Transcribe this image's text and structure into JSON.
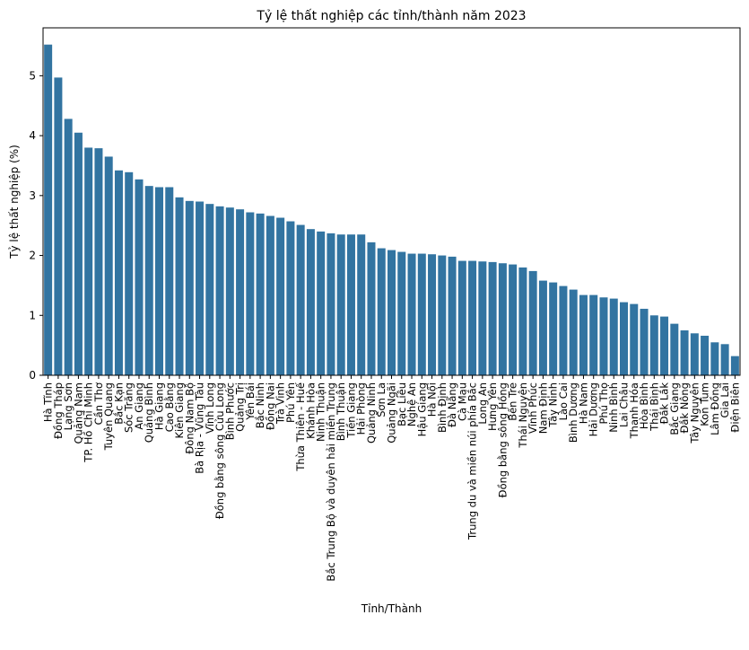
{
  "chart_data": {
    "type": "bar",
    "title": "Tỷ lệ thất nghiệp các tỉnh/thành năm 2023",
    "xlabel": "Tỉnh/Thành",
    "ylabel": "Tỷ lệ thất nghiệp (%)",
    "ylim": [
      0,
      5.8
    ],
    "yticks": [
      0,
      1,
      2,
      3,
      4,
      5
    ],
    "bar_color": "#3274a1",
    "grid": false,
    "categories": [
      "Hà Tĩnh",
      "Đồng Tháp",
      "Lạng Sơn",
      "Quảng Nam",
      "TP. Hồ Chí Minh",
      "Cần Thơ",
      "Tuyên Quang",
      "Bắc Kạn",
      "Sóc Trăng",
      "An Giang",
      "Quảng Bình",
      "Hà Giang",
      "Cao Bằng",
      "Kiên Giang",
      "Đông Nam Bộ",
      "Bà Rịa - Vũng Tàu",
      "Vĩnh Long",
      "Đồng bằng sông Cửu Long",
      "Bình Phước",
      "Quảng Trị",
      "Yên Bái",
      "Bắc Ninh",
      "Đồng Nai",
      "Trà Vinh",
      "Phú Yên",
      "Thừa Thiên - Huế",
      "Khánh Hòa",
      "Ninh Thuận",
      "Bắc Trung Bộ và duyên hải miền Trung",
      "Bình Thuận",
      "Tiền Giang",
      "Hải Phòng",
      "Quảng Ninh",
      "Sơn La",
      "Quảng Ngãi",
      "Bạc Liêu",
      "Nghệ An",
      "Hậu Giang",
      "Hà Nội",
      "Bình Định",
      "Đà Nẵng",
      "Cà Mau",
      "Trung du và miền núi phía Bắc",
      "Long An",
      "Hưng Yên",
      "Đồng bằng sông Hồng",
      "Bến Tre",
      "Thái Nguyên",
      "Vĩnh Phúc",
      "Nam Định",
      "Tây Ninh",
      "Lào Cai",
      "Bình Dương",
      "Hà Nam",
      "Hải Dương",
      "Phú Thọ",
      "Ninh Bình",
      "Lai Châu",
      "Thanh Hóa",
      "Hòa Bình",
      "Thái Bình",
      "Đắk Lắk",
      "Bắc Giang",
      "Đắk Nông",
      "Tây Nguyên",
      "Kon Tum",
      "Lâm Đồng",
      "Gia Lai",
      "Điện Biên"
    ],
    "values": [
      5.52,
      4.97,
      4.28,
      4.05,
      3.8,
      3.79,
      3.65,
      3.42,
      3.39,
      3.27,
      3.16,
      3.14,
      3.14,
      2.97,
      2.91,
      2.9,
      2.86,
      2.82,
      2.8,
      2.77,
      2.72,
      2.7,
      2.66,
      2.63,
      2.57,
      2.51,
      2.44,
      2.4,
      2.37,
      2.35,
      2.35,
      2.35,
      2.22,
      2.12,
      2.09,
      2.06,
      2.03,
      2.03,
      2.02,
      2.0,
      1.98,
      1.91,
      1.91,
      1.9,
      1.89,
      1.87,
      1.85,
      1.8,
      1.74,
      1.58,
      1.55,
      1.49,
      1.43,
      1.34,
      1.34,
      1.3,
      1.28,
      1.22,
      1.19,
      1.11,
      1.0,
      0.98,
      0.86,
      0.75,
      0.7,
      0.66,
      0.55,
      0.52,
      0.32
    ]
  }
}
